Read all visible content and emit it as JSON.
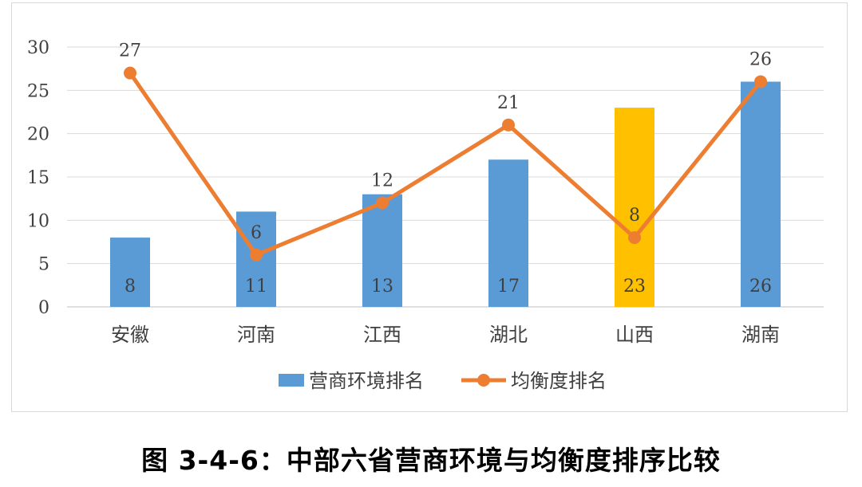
{
  "chart_data": {
    "type": "bar",
    "categories": [
      "安徽",
      "河南",
      "江西",
      "湖北",
      "山西",
      "湖南"
    ],
    "series": [
      {
        "name": "营商环境排名",
        "kind": "bar",
        "values": [
          8,
          11,
          13,
          17,
          23,
          26
        ],
        "color": "#5b9bd5",
        "highlight_color": "#ffc000",
        "highlight_index": 4
      },
      {
        "name": "均衡度排名",
        "kind": "line",
        "values": [
          27,
          6,
          12,
          21,
          8,
          26
        ],
        "color": "#ed7d31"
      }
    ],
    "yticks": [
      0,
      5,
      10,
      15,
      20,
      25,
      30
    ],
    "ylim": [
      0,
      30
    ],
    "grid": true,
    "legend_position": "bottom"
  },
  "caption": "图 3-4-6：中部六省营商环境与均衡度排序比较"
}
